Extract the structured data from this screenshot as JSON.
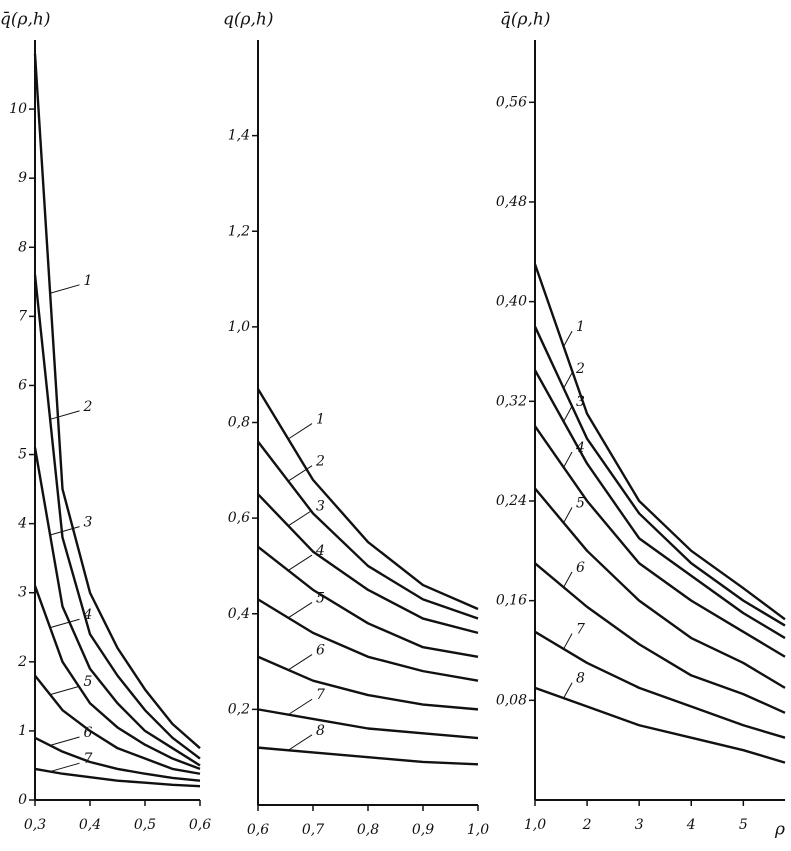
{
  "chart_data": [
    {
      "type": "line",
      "title": "q̄(ρ,h)",
      "x": [
        0.3,
        0.35,
        0.4,
        0.45,
        0.5,
        0.55,
        0.6
      ],
      "xlim": [
        0.3,
        0.6
      ],
      "xticks": [
        {
          "value": 0.3,
          "label": "0,3"
        },
        {
          "value": 0.4,
          "label": "0,4"
        },
        {
          "value": 0.5,
          "label": "0,5"
        },
        {
          "value": 0.6,
          "label": "0,6"
        }
      ],
      "ylim": [
        0,
        11
      ],
      "yticks": [
        0,
        1,
        2,
        3,
        4,
        5,
        6,
        7,
        8,
        9,
        10
      ],
      "series": [
        {
          "name": "1",
          "color": "#111111",
          "values": [
            10.8,
            4.5,
            3.0,
            2.2,
            1.6,
            1.1,
            0.75
          ]
        },
        {
          "name": "2",
          "color": "#111111",
          "values": [
            7.6,
            3.8,
            2.4,
            1.8,
            1.3,
            0.9,
            0.6
          ]
        },
        {
          "name": "3",
          "color": "#111111",
          "values": [
            5.1,
            2.8,
            1.9,
            1.4,
            1.0,
            0.75,
            0.5
          ]
        },
        {
          "name": "4",
          "color": "#111111",
          "values": [
            3.1,
            2.0,
            1.4,
            1.05,
            0.8,
            0.6,
            0.45
          ]
        },
        {
          "name": "5",
          "color": "#111111",
          "values": [
            1.8,
            1.3,
            1.0,
            0.75,
            0.6,
            0.45,
            0.38
          ]
        },
        {
          "name": "6",
          "color": "#111111",
          "values": [
            0.9,
            0.7,
            0.55,
            0.45,
            0.38,
            0.32,
            0.28
          ]
        },
        {
          "name": "7",
          "color": "#111111",
          "values": [
            0.45,
            0.38,
            0.33,
            0.28,
            0.25,
            0.22,
            0.2
          ]
        }
      ]
    },
    {
      "type": "line",
      "title": "q(ρ,h)",
      "x": [
        0.6,
        0.7,
        0.8,
        0.9,
        1.0
      ],
      "xlim": [
        0.6,
        1.0
      ],
      "xticks": [
        {
          "value": 0.6,
          "label": "0,6"
        },
        {
          "value": 0.7,
          "label": "0,7"
        },
        {
          "value": 0.8,
          "label": "0,8"
        },
        {
          "value": 0.9,
          "label": "0,9"
        },
        {
          "value": 1.0,
          "label": "1,0"
        }
      ],
      "ylim": [
        0,
        1.6
      ],
      "yticks": [
        {
          "value": 0.2,
          "label": "0,2"
        },
        {
          "value": 0.4,
          "label": "0,4"
        },
        {
          "value": 0.6,
          "label": "0,6"
        },
        {
          "value": 0.8,
          "label": "0,8"
        },
        {
          "value": 1.0,
          "label": "1,0"
        },
        {
          "value": 1.2,
          "label": "1,2"
        },
        {
          "value": 1.4,
          "label": "1,4"
        }
      ],
      "series": [
        {
          "name": "1",
          "color": "#111111",
          "values": [
            0.87,
            0.68,
            0.55,
            0.46,
            0.41
          ]
        },
        {
          "name": "2",
          "color": "#111111",
          "values": [
            0.76,
            0.61,
            0.5,
            0.43,
            0.39
          ]
        },
        {
          "name": "3",
          "color": "#111111",
          "values": [
            0.65,
            0.53,
            0.45,
            0.39,
            0.36
          ]
        },
        {
          "name": "4",
          "color": "#111111",
          "values": [
            0.54,
            0.45,
            0.38,
            0.33,
            0.31
          ]
        },
        {
          "name": "5",
          "color": "#111111",
          "values": [
            0.43,
            0.36,
            0.31,
            0.28,
            0.26
          ]
        },
        {
          "name": "6",
          "color": "#111111",
          "values": [
            0.31,
            0.26,
            0.23,
            0.21,
            0.2
          ]
        },
        {
          "name": "7",
          "color": "#111111",
          "values": [
            0.2,
            0.18,
            0.16,
            0.15,
            0.14
          ]
        },
        {
          "name": "8",
          "color": "#111111",
          "values": [
            0.12,
            0.11,
            0.1,
            0.09,
            0.085
          ]
        }
      ]
    },
    {
      "type": "line",
      "title": "q̄(ρ,h)",
      "x_label": "ρ",
      "x": [
        1,
        2,
        3,
        4,
        5,
        5.8
      ],
      "xlim": [
        1,
        5.8
      ],
      "xticks": [
        {
          "value": 1,
          "label": "1,0"
        },
        2,
        3,
        4,
        5
      ],
      "ylim": [
        0,
        0.61
      ],
      "yticks": [
        {
          "value": 0.08,
          "label": "0,08"
        },
        {
          "value": 0.16,
          "label": "0,16"
        },
        {
          "value": 0.24,
          "label": "0,24"
        },
        {
          "value": 0.32,
          "label": "0,32"
        },
        {
          "value": 0.4,
          "label": "0,40"
        },
        {
          "value": 0.48,
          "label": "0,48"
        },
        {
          "value": 0.56,
          "label": "0,56"
        }
      ],
      "series": [
        {
          "name": "1",
          "color": "#111111",
          "values": [
            0.43,
            0.31,
            0.24,
            0.2,
            0.17,
            0.145
          ]
        },
        {
          "name": "2",
          "color": "#111111",
          "values": [
            0.38,
            0.29,
            0.23,
            0.19,
            0.16,
            0.14
          ]
        },
        {
          "name": "3",
          "color": "#111111",
          "values": [
            0.345,
            0.27,
            0.21,
            0.18,
            0.15,
            0.13
          ]
        },
        {
          "name": "4",
          "color": "#111111",
          "values": [
            0.3,
            0.24,
            0.19,
            0.16,
            0.135,
            0.115
          ]
        },
        {
          "name": "5",
          "color": "#111111",
          "values": [
            0.25,
            0.2,
            0.16,
            0.13,
            0.11,
            0.09
          ]
        },
        {
          "name": "6",
          "color": "#111111",
          "values": [
            0.19,
            0.155,
            0.125,
            0.1,
            0.085,
            0.07
          ]
        },
        {
          "name": "7",
          "color": "#111111",
          "values": [
            0.135,
            0.11,
            0.09,
            0.075,
            0.06,
            0.05
          ]
        },
        {
          "name": "8",
          "color": "#111111",
          "values": [
            0.09,
            0.075,
            0.06,
            0.05,
            0.04,
            0.03
          ]
        }
      ]
    }
  ]
}
